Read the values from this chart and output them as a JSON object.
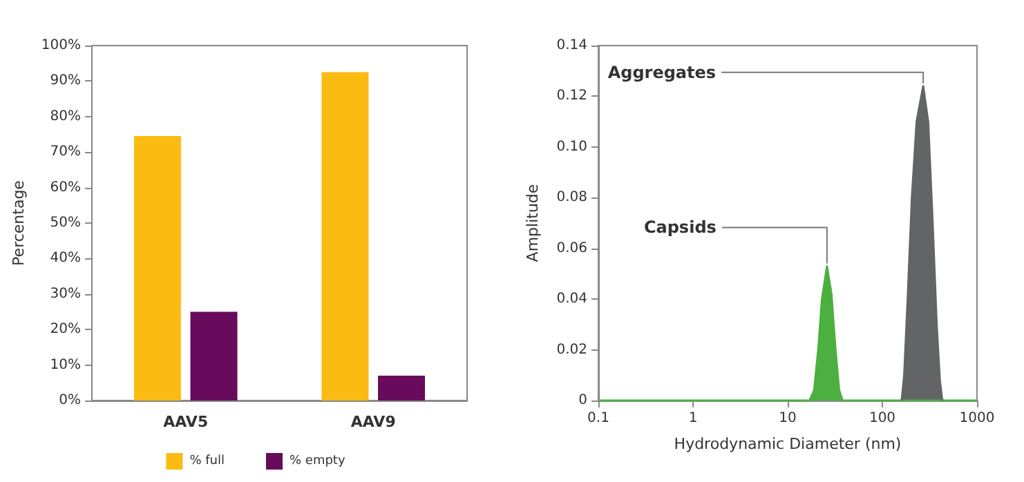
{
  "chart_data": [
    {
      "type": "bar",
      "ylabel": "Percentage",
      "categories": [
        "AAV5",
        "AAV9"
      ],
      "series": [
        {
          "name": "% full",
          "color": "#fbbb12",
          "values": [
            74.5,
            92.5
          ]
        },
        {
          "name": "% empty",
          "color": "#680b5c",
          "values": [
            25,
            7
          ]
        }
      ],
      "ylim": [
        0,
        100
      ],
      "yticks": [
        {
          "value": 0,
          "label": "0%"
        },
        {
          "value": 10,
          "label": "10%"
        },
        {
          "value": 20,
          "label": "20%"
        },
        {
          "value": 30,
          "label": "30%"
        },
        {
          "value": 40,
          "label": "40%"
        },
        {
          "value": 50,
          "label": "50%"
        },
        {
          "value": 60,
          "label": "60%"
        },
        {
          "value": 70,
          "label": "70%"
        },
        {
          "value": 80,
          "label": "80%"
        },
        {
          "value": 90,
          "label": "90%"
        },
        {
          "value": 100,
          "label": "100%"
        }
      ],
      "grid": false,
      "legend": "bottom"
    },
    {
      "type": "area",
      "xlabel": "Hydrodynamic Diameter (nm)",
      "ylabel": "Amplitude",
      "log": "x",
      "series": [
        {
          "name": "Capsids",
          "color": "#4cb040",
          "x": [
            0.1,
            17,
            19,
            21,
            23,
            26,
            29,
            32,
            35,
            38,
            1000
          ],
          "values": [
            0,
            0,
            0.004,
            0.02,
            0.04,
            0.053,
            0.042,
            0.02,
            0.004,
            0,
            0
          ]
        },
        {
          "name": "Aggregates",
          "color": "#636466",
          "x": [
            160,
            170,
            185,
            205,
            230,
            270,
            305,
            340,
            375,
            405,
            430
          ],
          "values": [
            0,
            0.01,
            0.04,
            0.08,
            0.11,
            0.124,
            0.11,
            0.07,
            0.03,
            0.008,
            0
          ]
        }
      ],
      "xlim": [
        0.1,
        1000
      ],
      "xticks": [
        0.1,
        1,
        10,
        100,
        1000
      ],
      "ylim": [
        0,
        0.14
      ],
      "yticks": [
        {
          "value": 0,
          "label": "0"
        },
        {
          "value": 0.02,
          "label": "0.02"
        },
        {
          "value": 0.04,
          "label": "0.04"
        },
        {
          "value": 0.06,
          "label": "0.06"
        },
        {
          "value": 0.08,
          "label": "0.08"
        },
        {
          "value": 0.1,
          "label": "0.10"
        },
        {
          "value": 0.12,
          "label": "0.12"
        },
        {
          "value": 0.14,
          "label": "0.14"
        }
      ],
      "grid": false,
      "legend": false
    }
  ]
}
